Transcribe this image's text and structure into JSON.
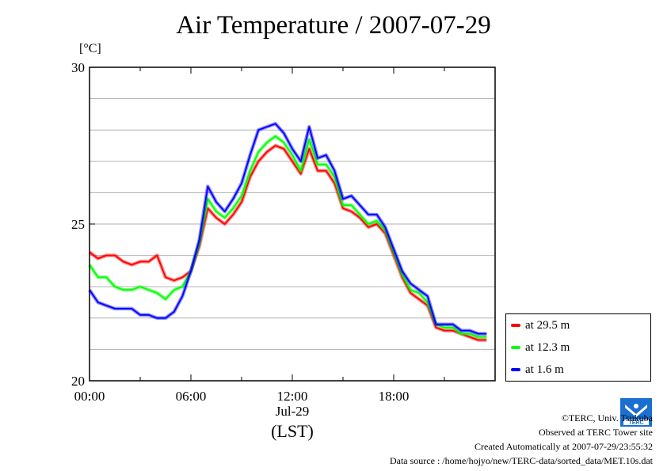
{
  "chart_data": {
    "type": "line",
    "title": "Air Temperature / 2007-07-29",
    "ylabel": "[°C]",
    "ylim": [
      20,
      30
    ],
    "yticks": [
      "20",
      "25",
      "30"
    ],
    "xlim_hours": [
      0,
      24
    ],
    "xticks": [
      "00:00",
      "06:00",
      "12:00",
      "18:00"
    ],
    "xlabel_date": "Jul-29",
    "xlabel": "(LST)",
    "grid": true,
    "legend_position": "right-bottom-outside",
    "x": [
      0,
      0.5,
      1,
      1.5,
      2,
      2.5,
      3,
      3.5,
      4,
      4.5,
      5,
      5.5,
      6,
      6.5,
      7,
      7.5,
      8,
      8.5,
      9,
      9.5,
      10,
      10.5,
      11,
      11.5,
      12,
      12.5,
      13,
      13.5,
      14,
      14.5,
      15,
      15.5,
      16,
      16.5,
      17,
      17.5,
      18,
      18.5,
      19,
      19.5,
      20,
      20.5,
      21,
      21.5,
      22,
      22.5,
      23,
      23.5
    ],
    "series": [
      {
        "name": "at 29.5 m",
        "color": "#ff0000",
        "values": [
          24.1,
          23.9,
          24.0,
          24.0,
          23.8,
          23.7,
          23.8,
          23.8,
          24.0,
          23.3,
          23.2,
          23.3,
          23.5,
          24.3,
          25.5,
          25.2,
          25.0,
          25.3,
          25.7,
          26.5,
          27.0,
          27.3,
          27.5,
          27.4,
          27.0,
          26.6,
          27.4,
          26.7,
          26.7,
          26.3,
          25.5,
          25.4,
          25.2,
          24.9,
          25.0,
          24.7,
          24.0,
          23.3,
          22.8,
          22.6,
          22.4,
          21.7,
          21.6,
          21.6,
          21.5,
          21.4,
          21.3,
          21.3
        ]
      },
      {
        "name": "at 12.3 m",
        "color": "#00ff00",
        "values": [
          23.7,
          23.3,
          23.3,
          23.0,
          22.9,
          22.9,
          23.0,
          22.9,
          22.8,
          22.6,
          22.9,
          23.0,
          23.5,
          24.4,
          25.8,
          25.4,
          25.2,
          25.5,
          25.9,
          26.7,
          27.3,
          27.6,
          27.8,
          27.6,
          27.2,
          26.7,
          27.7,
          26.9,
          26.9,
          26.5,
          25.6,
          25.6,
          25.3,
          25.0,
          25.1,
          24.8,
          24.1,
          23.4,
          22.9,
          22.8,
          22.5,
          21.8,
          21.7,
          21.7,
          21.5,
          21.5,
          21.4,
          21.4
        ]
      },
      {
        "name": "at 1.6 m",
        "color": "#0000ff",
        "values": [
          22.9,
          22.5,
          22.4,
          22.3,
          22.3,
          22.3,
          22.1,
          22.1,
          22.0,
          22.0,
          22.2,
          22.7,
          23.5,
          24.5,
          26.2,
          25.7,
          25.4,
          25.8,
          26.3,
          27.2,
          28.0,
          28.1,
          28.2,
          27.9,
          27.4,
          27.0,
          28.1,
          27.1,
          27.2,
          26.7,
          25.8,
          25.9,
          25.6,
          25.3,
          25.3,
          24.9,
          24.2,
          23.5,
          23.1,
          22.9,
          22.7,
          21.8,
          21.8,
          21.8,
          21.6,
          21.6,
          21.5,
          21.5
        ]
      }
    ]
  },
  "credits": {
    "copyright": "©TERC, Univ. Tsukuba",
    "observed": "Observed at TERC Tower site",
    "created": "Created Automatically at 2007-07-29/23:55:32",
    "source": "Data source : /home/hojyo/new/TERC-data/sorted_data/MET.10s.dat"
  },
  "logo": {
    "text": "TERC",
    "color": "#1a6fd0"
  }
}
